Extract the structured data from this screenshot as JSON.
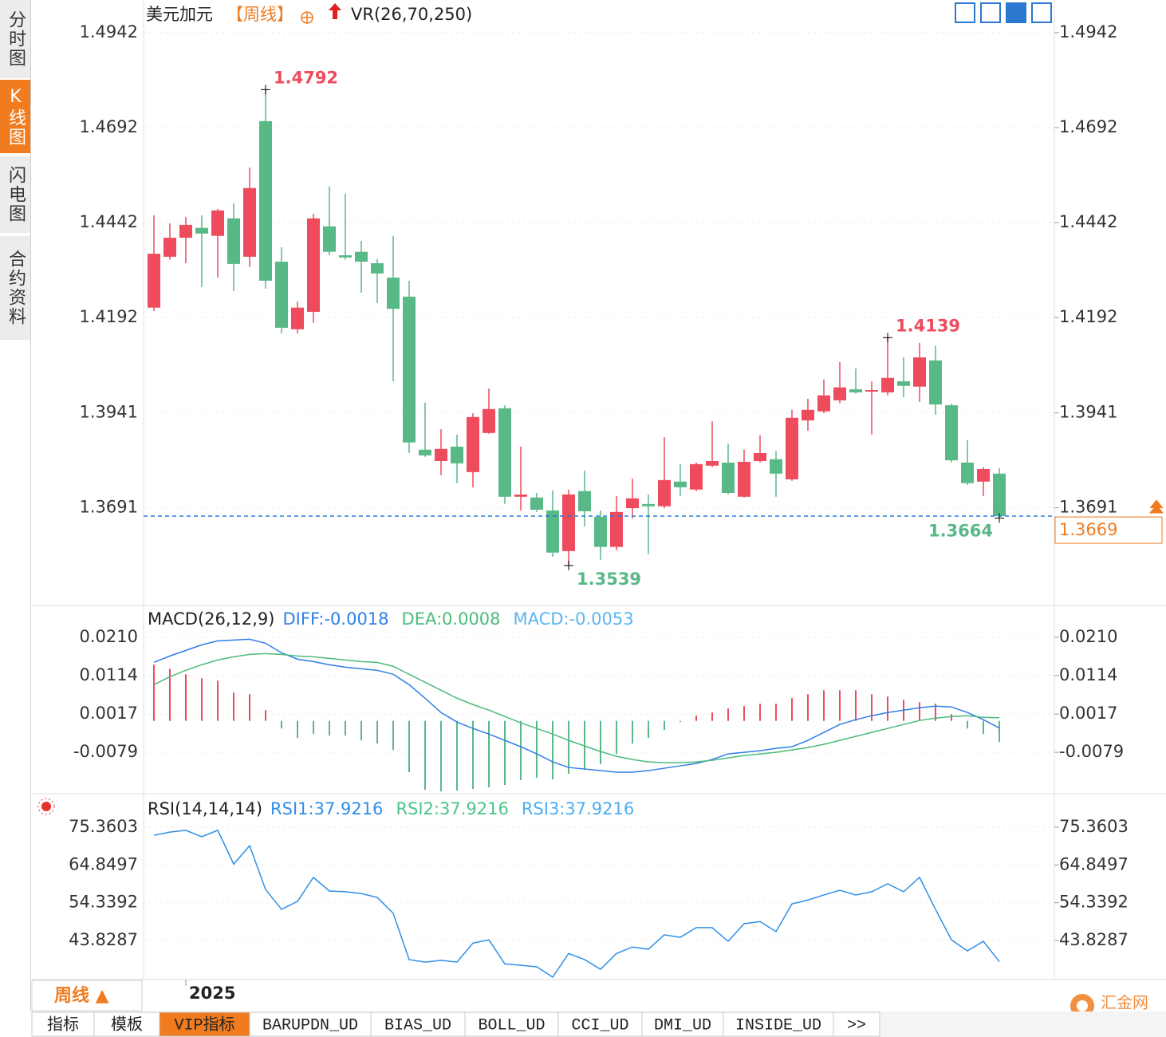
{
  "sidebar": [
    "分时图",
    "K线图",
    "闪电图",
    "合约资料"
  ],
  "chart_data": [
    {
      "type": "candlestick",
      "title": "美元加元",
      "period": "【周线】",
      "indicator": "VR(26,70,250)",
      "up_color": "#ee4b5d",
      "down_color": "#58b987",
      "categories": [
        null,
        null,
        "2025",
        null,
        null,
        null,
        null,
        null,
        null,
        null,
        null,
        null,
        null,
        null,
        null,
        null,
        null,
        null,
        null,
        null,
        null,
        null,
        null,
        null,
        null,
        null,
        null,
        null,
        null,
        null,
        null,
        null,
        null,
        null,
        null,
        null,
        null,
        null,
        null,
        null,
        null,
        null,
        null,
        null,
        null,
        null,
        null,
        null,
        null,
        null,
        null,
        null,
        null,
        null
      ],
      "open": [
        1.4218,
        1.4352,
        1.4402,
        1.4428,
        1.4407,
        1.4453,
        1.4352,
        1.4709,
        1.4339,
        1.4161,
        1.4207,
        1.4432,
        1.4356,
        1.4365,
        1.4335,
        1.4297,
        1.4247,
        1.3844,
        1.3814,
        1.3852,
        1.3785,
        1.3888,
        1.3953,
        1.372,
        1.3718,
        1.3684,
        1.3577,
        1.3735,
        1.3667,
        1.3588,
        1.369,
        1.3701,
        1.3695,
        1.376,
        1.3739,
        1.3802,
        1.381,
        1.372,
        1.3814,
        1.3819,
        1.3766,
        1.3921,
        1.3945,
        1.3974,
        1.4003,
        1.3997,
        1.3995,
        1.4024,
        1.401,
        1.4079,
        1.3961,
        1.381,
        1.376,
        1.3781
      ],
      "high": [
        1.4461,
        1.444,
        1.4457,
        1.4461,
        1.4478,
        1.4493,
        1.4587,
        1.4792,
        1.4377,
        1.4234,
        1.4465,
        1.4537,
        1.4518,
        1.4394,
        1.4346,
        1.4407,
        1.4289,
        1.3968,
        1.3898,
        1.3884,
        1.394,
        1.4005,
        1.3961,
        1.3852,
        1.373,
        1.3737,
        1.3739,
        1.3789,
        1.3684,
        1.3722,
        1.3768,
        1.3726,
        1.3877,
        1.3806,
        1.381,
        1.3919,
        1.386,
        1.3844,
        1.3882,
        1.384,
        1.3949,
        1.3978,
        1.4029,
        1.4075,
        1.4058,
        1.4024,
        1.4139,
        1.4087,
        1.4125,
        1.4117,
        1.3965,
        1.3869,
        1.3798,
        1.3795
      ],
      "low": [
        1.4209,
        1.4344,
        1.4335,
        1.4272,
        1.4297,
        1.4262,
        1.4325,
        1.4268,
        1.415,
        1.415,
        1.4178,
        1.4356,
        1.4344,
        1.4257,
        1.423,
        1.4024,
        1.3835,
        1.3825,
        1.3777,
        1.3756,
        1.3745,
        1.3886,
        1.3701,
        1.3684,
        1.368,
        1.3562,
        1.3539,
        1.3642,
        1.3554,
        1.3579,
        1.3663,
        1.3569,
        1.369,
        1.3722,
        1.3735,
        1.3798,
        1.3726,
        1.3718,
        1.381,
        1.372,
        1.3762,
        1.3894,
        1.394,
        1.3966,
        1.3991,
        1.3884,
        1.3987,
        1.3982,
        1.397,
        1.3936,
        1.381,
        1.3751,
        1.3722,
        1.3664
      ],
      "close": [
        1.436,
        1.4402,
        1.4436,
        1.4413,
        1.4474,
        1.4333,
        1.4533,
        1.4289,
        1.4165,
        1.4218,
        1.4453,
        1.4365,
        1.435,
        1.4339,
        1.4308,
        1.4215,
        1.3863,
        1.3829,
        1.3846,
        1.3808,
        1.393,
        1.3951,
        1.372,
        1.3726,
        1.3686,
        1.3573,
        1.3726,
        1.3682,
        1.3588,
        1.368,
        1.3716,
        1.3695,
        1.3764,
        1.3745,
        1.3806,
        1.3814,
        1.373,
        1.3812,
        1.3835,
        1.3781,
        1.3928,
        1.3949,
        1.3987,
        1.4008,
        1.3995,
        1.4001,
        1.4033,
        1.4012,
        1.4087,
        1.3963,
        1.3816,
        1.3756,
        1.3793,
        1.3669
      ],
      "ylim": [
        1.3436,
        1.5028
      ],
      "yticks": [
        1.4942,
        1.4692,
        1.4442,
        1.4192,
        1.3941,
        1.3691
      ],
      "grid": true
    },
    {
      "type": "macd",
      "title": "MACD(26,12,9)",
      "series": [
        {
          "name": "DIFF:-0.0018",
          "color": "#2f7fe8",
          "values": [
            0.0147,
            0.0163,
            0.0177,
            0.0191,
            0.0201,
            0.0203,
            0.0205,
            0.0195,
            0.0171,
            0.0155,
            0.0149,
            0.0141,
            0.0135,
            0.0131,
            0.0127,
            0.0117,
            0.0091,
            0.0057,
            0.0021,
            -0.0003,
            -0.0019,
            -0.0033,
            -0.0049,
            -0.0065,
            -0.0083,
            -0.0103,
            -0.0117,
            -0.0121,
            -0.0125,
            -0.0129,
            -0.0129,
            -0.0125,
            -0.0119,
            -0.0113,
            -0.0107,
            -0.0097,
            -0.0083,
            -0.0079,
            -0.0075,
            -0.0069,
            -0.0065,
            -0.0049,
            -0.0029,
            -0.0009,
            0.0003,
            0.0013,
            0.0021,
            0.0027,
            0.0033,
            0.0037,
            0.0035,
            0.0021,
            0.0003,
            -0.0018
          ]
        },
        {
          "name": "DEA:0.0008",
          "color": "#4cbb7a",
          "values": [
            0.0091,
            0.0111,
            0.0127,
            0.0141,
            0.0153,
            0.0161,
            0.0167,
            0.0169,
            0.0167,
            0.0163,
            0.0161,
            0.0157,
            0.0153,
            0.0149,
            0.0147,
            0.0137,
            0.0117,
            0.0097,
            0.0077,
            0.0057,
            0.0041,
            0.0027,
            0.0011,
            -0.0005,
            -0.0019,
            -0.0033,
            -0.0049,
            -0.0063,
            -0.0077,
            -0.0089,
            -0.0097,
            -0.0103,
            -0.0105,
            -0.0105,
            -0.0103,
            -0.0099,
            -0.0093,
            -0.0087,
            -0.0083,
            -0.0079,
            -0.0073,
            -0.0067,
            -0.0059,
            -0.0049,
            -0.0039,
            -0.0029,
            -0.0019,
            -0.0009,
            0.0001,
            0.0007,
            0.0011,
            0.0013,
            0.0009,
            0.0008
          ]
        }
      ],
      "histogram": {
        "name": "MACD:-0.0053",
        "color": "#5ab4f0",
        "up_color": "#ee4b5d",
        "down_color": "#58b987",
        "values": [
          0.0141,
          0.0131,
          0.0117,
          0.0107,
          0.0101,
          0.0071,
          0.0067,
          0.0027,
          -0.0019,
          -0.0043,
          -0.0033,
          -0.0037,
          -0.0037,
          -0.0049,
          -0.0057,
          -0.0073,
          -0.0129,
          -0.0173,
          -0.0177,
          -0.0175,
          -0.0171,
          -0.0167,
          -0.0161,
          -0.0149,
          -0.0143,
          -0.0147,
          -0.0133,
          -0.0123,
          -0.0109,
          -0.0083,
          -0.0057,
          -0.0043,
          -0.0023,
          -0.0003,
          0.0013,
          0.0021,
          0.0031,
          0.0037,
          0.0043,
          0.0043,
          0.0057,
          0.0067,
          0.0077,
          0.0077,
          0.0077,
          0.0067,
          0.0061,
          0.0053,
          0.0047,
          0.0043,
          0.0017,
          -0.0019,
          -0.0033,
          -0.0053
        ]
      },
      "ylim": [
        -0.0179,
        0.0288
      ],
      "yticks": [
        {
          "value": 0.021,
          "label": "0.0210"
        },
        0.0114,
        0.0017,
        -0.0079
      ]
    },
    {
      "type": "line",
      "title": "RSI(14,14,14)",
      "series": [
        {
          "name": "RSI1:37.9216",
          "color": "#2f8fe8",
          "values": [
            73.1,
            74.0,
            74.5,
            72.7,
            74.5,
            65.1,
            70.2,
            58.0,
            52.5,
            54.7,
            61.4,
            57.6,
            57.4,
            56.9,
            55.8,
            51.4,
            38.5,
            37.8,
            38.3,
            37.8,
            43.1,
            44.0,
            37.3,
            36.9,
            36.5,
            33.6,
            40.2,
            38.5,
            35.8,
            40.2,
            42.0,
            41.4,
            45.4,
            44.7,
            47.4,
            47.4,
            43.6,
            48.5,
            49.1,
            46.3,
            54.0,
            55.1,
            56.5,
            57.8,
            56.5,
            57.4,
            59.6,
            57.4,
            61.4,
            52.5,
            44.0,
            40.9,
            43.6,
            37.9216
          ]
        },
        {
          "name": "RSI2:37.9216",
          "color": "#4cc487"
        },
        {
          "name": "RSI3:37.9216",
          "color": "#4aaef0"
        }
      ],
      "ylim": [
        32.94,
        84.25
      ],
      "yticks": [
        75.3603,
        64.8497,
        54.3392,
        43.8287
      ]
    }
  ],
  "period_button": "周线 ▲",
  "tabs": [
    "指标",
    "模板",
    "VIP指标",
    "BARUPDN_UD",
    "BIAS_UD",
    "BOLL_UD",
    "CCI_UD",
    "DMI_UD",
    "INSIDE_UD",
    ">>"
  ],
  "watermark": "汇金网"
}
